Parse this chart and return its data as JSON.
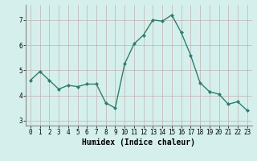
{
  "x": [
    0,
    1,
    2,
    3,
    4,
    5,
    6,
    7,
    8,
    9,
    10,
    11,
    12,
    13,
    14,
    15,
    16,
    17,
    18,
    19,
    20,
    21,
    22,
    23
  ],
  "y": [
    4.6,
    4.95,
    4.6,
    4.25,
    4.4,
    4.35,
    4.45,
    4.45,
    3.7,
    3.5,
    5.25,
    6.05,
    6.4,
    7.0,
    6.95,
    7.2,
    6.5,
    5.6,
    4.5,
    4.15,
    4.05,
    3.65,
    3.75,
    3.4
  ],
  "line_color": "#2e7d6e",
  "marker": "D",
  "marker_size": 2,
  "linewidth": 1.0,
  "xlabel": "Humidex (Indice chaleur)",
  "xlabel_fontsize": 7,
  "ylim": [
    2.8,
    7.6
  ],
  "xlim": [
    -0.5,
    23.5
  ],
  "yticks": [
    3,
    4,
    5,
    6,
    7
  ],
  "xticks": [
    0,
    1,
    2,
    3,
    4,
    5,
    6,
    7,
    8,
    9,
    10,
    11,
    12,
    13,
    14,
    15,
    16,
    17,
    18,
    19,
    20,
    21,
    22,
    23
  ],
  "grid_color": "#c0b0b0",
  "background_color": "#d5f0ec",
  "tick_fontsize": 5.5
}
